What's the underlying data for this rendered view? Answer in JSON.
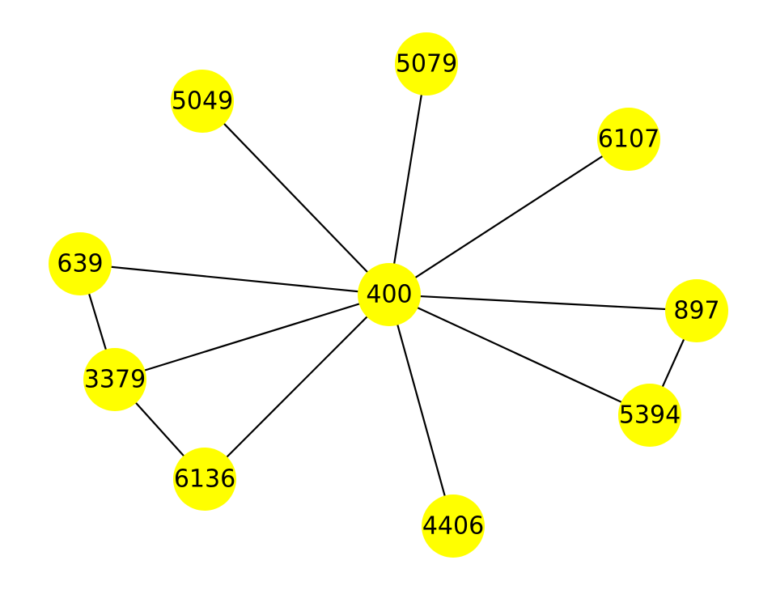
{
  "graph": {
    "node_color": "#ffff00",
    "edge_color": "#000000",
    "label_color": "#000000",
    "nodes": [
      {
        "id": "400",
        "label": "400"
      },
      {
        "id": "5079",
        "label": "5079"
      },
      {
        "id": "5049",
        "label": "5049"
      },
      {
        "id": "6107",
        "label": "6107"
      },
      {
        "id": "639",
        "label": "639"
      },
      {
        "id": "897",
        "label": "897"
      },
      {
        "id": "3379",
        "label": "3379"
      },
      {
        "id": "5394",
        "label": "5394"
      },
      {
        "id": "6136",
        "label": "6136"
      },
      {
        "id": "4406",
        "label": "4406"
      }
    ],
    "edges": [
      {
        "source": "400",
        "target": "5079"
      },
      {
        "source": "400",
        "target": "5049"
      },
      {
        "source": "400",
        "target": "6107"
      },
      {
        "source": "400",
        "target": "639"
      },
      {
        "source": "400",
        "target": "897"
      },
      {
        "source": "400",
        "target": "3379"
      },
      {
        "source": "400",
        "target": "5394"
      },
      {
        "source": "400",
        "target": "6136"
      },
      {
        "source": "400",
        "target": "4406"
      },
      {
        "source": "639",
        "target": "3379"
      },
      {
        "source": "3379",
        "target": "6136"
      },
      {
        "source": "897",
        "target": "5394"
      }
    ]
  }
}
